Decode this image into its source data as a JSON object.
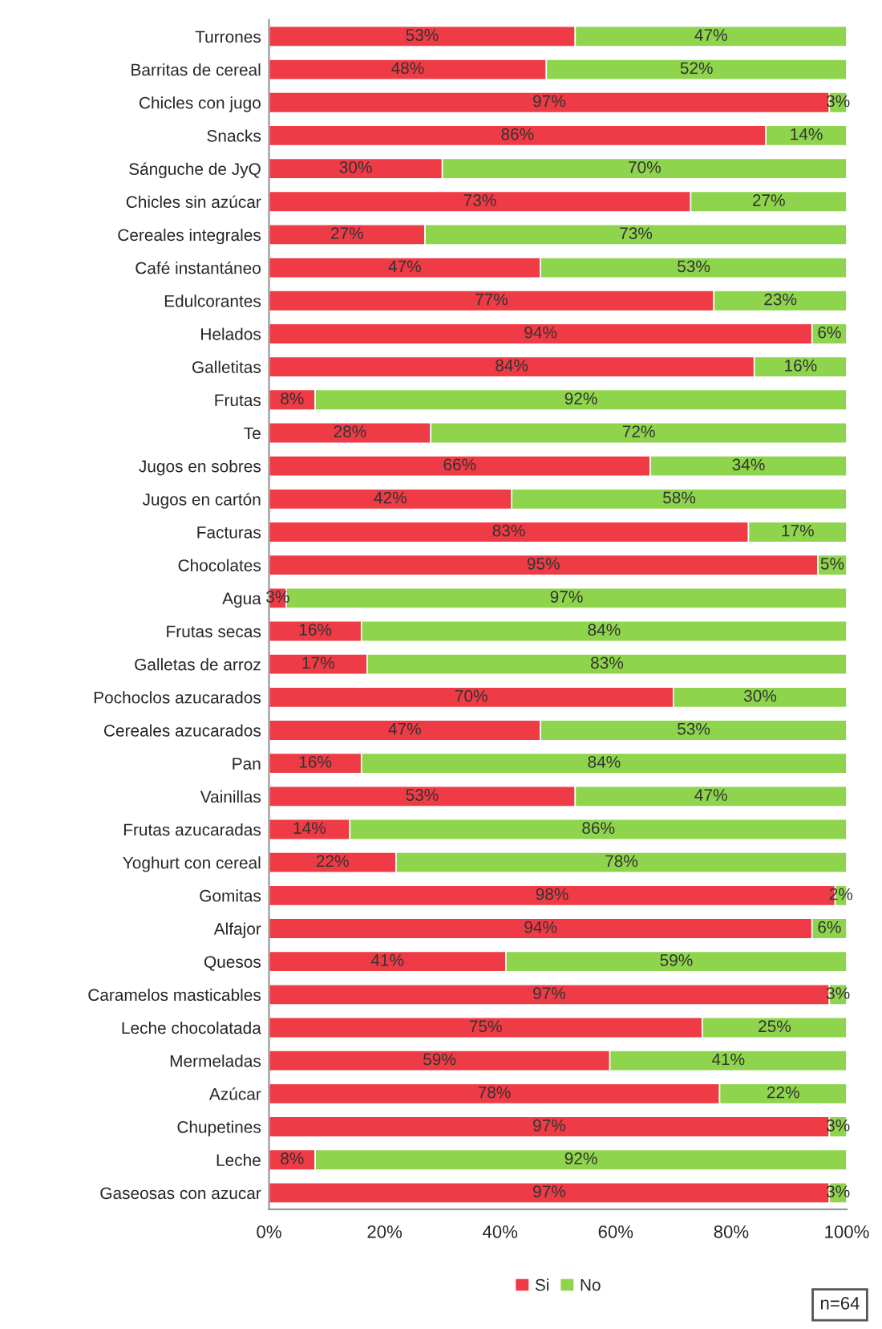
{
  "chart_data": {
    "type": "bar",
    "orientation": "horizontal",
    "stacked": true,
    "categories": [
      "Turrones",
      "Barritas de cereal",
      "Chicles con jugo",
      "Snacks",
      "Sánguche de JyQ",
      "Chicles sin azúcar",
      "Cereales integrales",
      "Café instantáneo",
      "Edulcorantes",
      "Helados",
      "Galletitas",
      "Frutas",
      "Te",
      "Jugos en sobres",
      "Jugos en cartón",
      "Facturas",
      "Chocolates",
      "Agua",
      "Frutas secas",
      "Galletas de arroz",
      "Pochoclos azucarados",
      "Cereales azucarados",
      "Pan",
      "Vainillas",
      "Frutas azucaradas",
      "Yoghurt con cereal",
      "Gomitas",
      "Alfajor",
      "Quesos",
      "Caramelos masticables",
      "Leche chocolatada",
      "Mermeladas",
      "Azúcar",
      "Chupetines",
      "Leche",
      "Gaseosas con azucar"
    ],
    "series": [
      {
        "name": "Si",
        "color": "#ee3b45",
        "values": [
          53,
          48,
          97,
          86,
          30,
          73,
          27,
          47,
          77,
          94,
          84,
          8,
          28,
          66,
          42,
          83,
          95,
          3,
          16,
          17,
          70,
          47,
          16,
          53,
          14,
          22,
          98,
          94,
          41,
          97,
          75,
          59,
          78,
          97,
          8,
          97
        ],
        "value_labels": [
          "53%",
          "48%",
          "97%",
          "86%",
          "30%",
          "73%",
          "27%",
          "47%",
          "77%",
          "94%",
          "84%",
          "8%",
          "28%",
          "66%",
          "42%",
          "83%",
          "95%",
          "3%",
          "16%",
          "17%",
          "70%",
          "47%",
          "16%",
          "53%",
          "14%",
          "22%",
          "98%",
          "94%",
          "41%",
          "97%",
          "75%",
          "59%",
          "78%",
          "97%",
          "8%",
          "97%"
        ]
      },
      {
        "name": "No",
        "color": "#8ed44c",
        "values": [
          47,
          52,
          3,
          14,
          70,
          27,
          73,
          53,
          23,
          6,
          16,
          92,
          72,
          34,
          58,
          17,
          5,
          97,
          84,
          83,
          30,
          53,
          84,
          47,
          86,
          78,
          2,
          6,
          59,
          3,
          25,
          41,
          22,
          3,
          92,
          3
        ],
        "value_labels": [
          "47%",
          "52%",
          "3%",
          "14%",
          "70%",
          "27%",
          "73%",
          "53%",
          "23%",
          "6%",
          "16%",
          "92%",
          "72%",
          "34%",
          "58%",
          "17%",
          "5%",
          "97%",
          "84%",
          "83%",
          "30%",
          "53%",
          "84%",
          "47%",
          "86%",
          "78%",
          "2%",
          "6%",
          "59%",
          "3%",
          "25%",
          "41%",
          "22%",
          "3%",
          "92%",
          "3%"
        ]
      }
    ],
    "xlim": [
      0,
      100
    ],
    "xticks": [
      {
        "value": 0,
        "label": "0%"
      },
      {
        "value": 20,
        "label": "20%"
      },
      {
        "value": 40,
        "label": "40%"
      },
      {
        "value": 60,
        "label": "60%"
      },
      {
        "value": 80,
        "label": "80%"
      },
      {
        "value": 100,
        "label": "100%"
      }
    ],
    "legend": "bottom",
    "grid": false,
    "annotations": [
      "n=64"
    ]
  }
}
